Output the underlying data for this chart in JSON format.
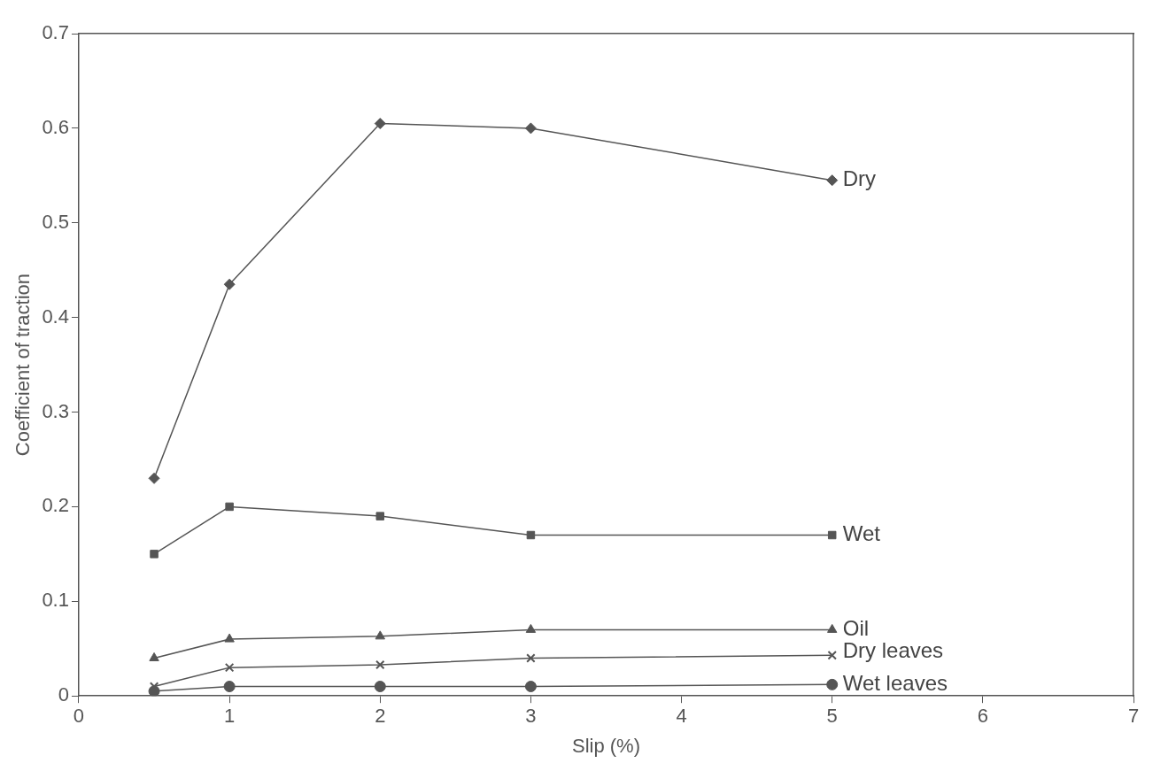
{
  "chart_data": {
    "type": "line",
    "xlabel": "Slip (%)",
    "ylabel": "Coefficient of traction",
    "xlim": [
      0,
      7
    ],
    "xticks": [
      0,
      1,
      2,
      3,
      4,
      5,
      6,
      7
    ],
    "ylim": [
      0,
      0.7
    ],
    "yticks": [
      0,
      0.1,
      0.2,
      0.3,
      0.4,
      0.5,
      0.6,
      0.7
    ],
    "grid": false,
    "legend": false,
    "line_style": "solid",
    "x": [
      0.5,
      1,
      2,
      3,
      5
    ],
    "series": [
      {
        "name": "Dry",
        "color": "#555555",
        "marker": "diamond",
        "values": [
          0.23,
          0.435,
          0.605,
          0.6,
          0.545
        ]
      },
      {
        "name": "Wet",
        "color": "#555555",
        "marker": "square",
        "values": [
          0.15,
          0.2,
          0.19,
          0.17,
          0.17
        ]
      },
      {
        "name": "Oil",
        "color": "#555555",
        "marker": "triangle",
        "values": [
          0.04,
          0.06,
          0.063,
          0.07,
          0.07
        ]
      },
      {
        "name": "Dry leaves",
        "color": "#555555",
        "marker": "cross",
        "values": [
          0.01,
          0.03,
          0.033,
          0.04,
          0.043
        ]
      },
      {
        "name": "Wet leaves",
        "color": "#555555",
        "marker": "circle",
        "values": [
          0.005,
          0.01,
          0.01,
          0.01,
          0.012
        ]
      }
    ]
  }
}
